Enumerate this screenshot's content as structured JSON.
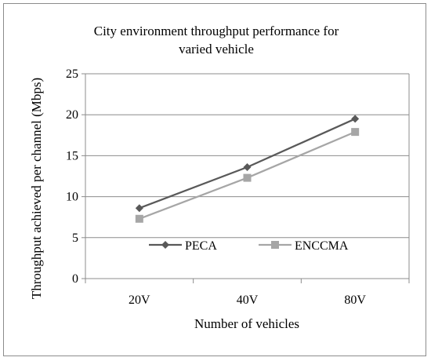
{
  "chart_data": {
    "type": "line",
    "title_lines": [
      "City environment throughput performance for",
      "varied vehicle"
    ],
    "xlabel": "Number of vehicles",
    "ylabel": "Throughput achieved per channel (Mbps)",
    "categories": [
      "20V",
      "40V",
      "80V"
    ],
    "ylim": [
      0,
      25
    ],
    "yticks": [
      "0",
      "5",
      "10",
      "15",
      "20",
      "25"
    ],
    "grid": true,
    "legend_position": "inside-bottom",
    "series": [
      {
        "name": "PECA",
        "values": [
          8.6,
          13.6,
          19.5
        ],
        "color": "#595959",
        "marker": "diamond"
      },
      {
        "name": "ENCCMA",
        "values": [
          7.3,
          12.3,
          17.9
        ],
        "color": "#a6a6a6",
        "marker": "square"
      }
    ]
  }
}
